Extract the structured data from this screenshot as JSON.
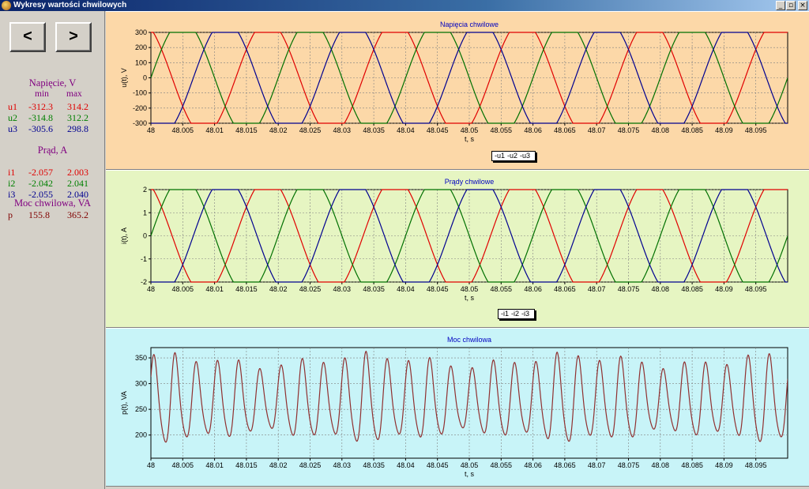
{
  "window": {
    "title": "Wykresy wartości chwilowych",
    "controls": {
      "minimize": "_",
      "maximize": "▫",
      "close": "×"
    }
  },
  "nav": {
    "prev_label": "<",
    "next_label": ">"
  },
  "stats": {
    "min_label": "min",
    "max_label": "max",
    "voltage": {
      "title": "Napięcie, V",
      "rows": [
        {
          "label": "u1",
          "min": "-312.3",
          "max": "314.2",
          "color": "#e00000"
        },
        {
          "label": "u2",
          "min": "-314.8",
          "max": "312.2",
          "color": "#008000"
        },
        {
          "label": "u3",
          "min": "-305.6",
          "max": "298.8",
          "color": "#000090"
        }
      ]
    },
    "current": {
      "title": "Prąd, A",
      "rows": [
        {
          "label": "i1",
          "min": "-2.057",
          "max": "2.003",
          "color": "#e00000"
        },
        {
          "label": "i2",
          "min": "-2.042",
          "max": "2.041",
          "color": "#008000"
        },
        {
          "label": "i3",
          "min": "-2.055",
          "max": "2.040",
          "color": "#000090"
        }
      ]
    },
    "power": {
      "title": "Moc chwilowa, VA",
      "rows": [
        {
          "label": "p",
          "min": "155.8",
          "max": "365.2",
          "color": "#800000"
        }
      ]
    }
  },
  "chart_data": [
    {
      "type": "line",
      "title": "Napięcia chwilowe",
      "xlabel": "t, s",
      "ylabel": "u(t), V",
      "xlim": [
        48,
        48.1
      ],
      "ylim": [
        -300,
        300
      ],
      "x_ticks": [
        "48",
        "48.005",
        "48.01",
        "48.015",
        "48.02",
        "48.025",
        "48.03",
        "48.035",
        "48.04",
        "48.045",
        "48.05",
        "48.055",
        "48.06",
        "48.065",
        "48.07",
        "48.075",
        "48.08",
        "48.085",
        "48.09",
        "48.095"
      ],
      "y_ticks": [
        "300",
        "200",
        "100",
        "0",
        "-100",
        "-200",
        "-300"
      ],
      "grid": true,
      "legend": "bottom-center",
      "waveform": {
        "frequency_hz": 50,
        "amplitude": 300,
        "shape": "clipped-sine",
        "period_s": 0.02
      },
      "series": [
        {
          "name": "u1",
          "color": "#e00000",
          "phase_deg": 120
        },
        {
          "name": "u2",
          "color": "#007000",
          "phase_deg": 0
        },
        {
          "name": "u3",
          "color": "#000090",
          "phase_deg": -120
        }
      ]
    },
    {
      "type": "line",
      "title": "Prądy chwilowe",
      "xlabel": "t, s",
      "ylabel": "i(t), A",
      "xlim": [
        48,
        48.1
      ],
      "ylim": [
        -2,
        2
      ],
      "x_ticks": [
        "48",
        "48.005",
        "48.01",
        "48.015",
        "48.02",
        "48.025",
        "48.03",
        "48.035",
        "48.04",
        "48.045",
        "48.05",
        "48.055",
        "48.06",
        "48.065",
        "48.07",
        "48.075",
        "48.08",
        "48.085",
        "48.09",
        "48.095"
      ],
      "y_ticks": [
        "2",
        "1",
        "0",
        "-1",
        "-2"
      ],
      "grid": true,
      "legend": "bottom-center",
      "waveform": {
        "frequency_hz": 50,
        "amplitude": 2,
        "shape": "clipped-sine",
        "period_s": 0.02
      },
      "series": [
        {
          "name": "i1",
          "color": "#e00000",
          "phase_deg": 120
        },
        {
          "name": "i2",
          "color": "#007000",
          "phase_deg": 0
        },
        {
          "name": "i3",
          "color": "#000090",
          "phase_deg": -120
        }
      ]
    },
    {
      "type": "line",
      "title": "Moc chwilowa",
      "xlabel": "t, s",
      "ylabel": "p(t), VA",
      "xlim": [
        48,
        48.1
      ],
      "ylim": [
        155,
        370
      ],
      "x_ticks": [
        "48",
        "48.005",
        "48.01",
        "48.015",
        "48.02",
        "48.025",
        "48.03",
        "48.035",
        "48.04",
        "48.045",
        "48.05",
        "48.055",
        "48.06",
        "48.065",
        "48.07",
        "48.075",
        "48.08",
        "48.085",
        "48.09",
        "48.095"
      ],
      "y_ticks": [
        "350",
        "300",
        "250",
        "200"
      ],
      "grid": true,
      "waveform": {
        "frequency_hz": 300,
        "mean": 265,
        "amplitude": 75,
        "amplitude_modulation": 25,
        "period_s": 0.0033
      },
      "series": [
        {
          "name": "p",
          "color": "#903030",
          "phase_deg": 0
        }
      ]
    }
  ]
}
